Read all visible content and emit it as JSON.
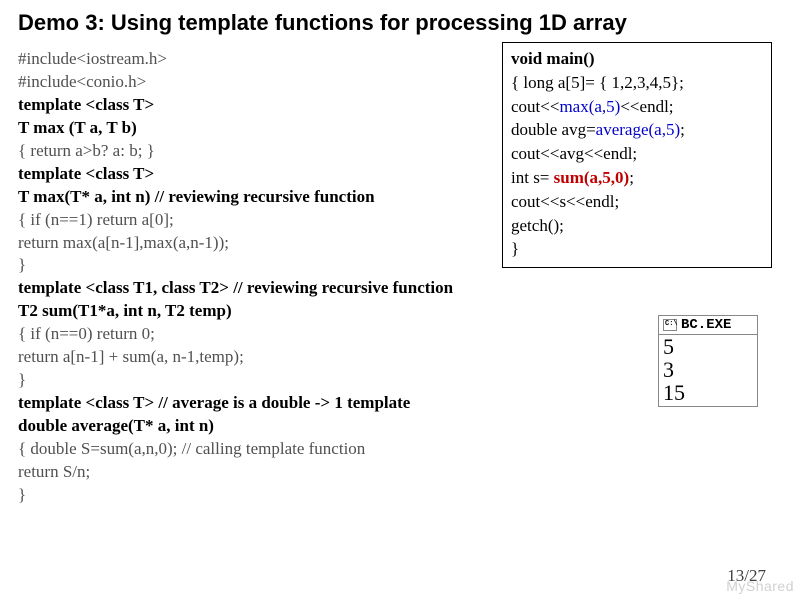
{
  "title": "Demo 3: Using template functions for processing 1D array",
  "left": {
    "l1": "#include<iostream.h>",
    "l2": "#include<conio.h>",
    "l3a": "template ",
    "l3b": "<class T>",
    "l4": "T max (T a, T b)",
    "l5": "{ return a>b? a: b; }",
    "l6a": "template ",
    "l6b": "<class T>",
    "l7": "T max(T* a, int n)",
    "l7c": "  // reviewing recursive function",
    "l8": "{  if (n==1) return a[0];",
    "l9": "   return max(a[n-1],max(a,n-1));",
    "l10": "}",
    "l11a": "template ",
    "l11b": "<class T1, class T2>",
    "l11c": "       // reviewing recursive function",
    "l12": "T2 sum(T1*a, int n, T2 temp)",
    "l13": "{  if (n==0) return 0;",
    "l14": "   return a[n-1] + sum(a, n-1,temp);",
    "l15": "}",
    "l16a": "template ",
    "l16b": "<class T>",
    "l16c": "                  // average is a double -> 1 template",
    "l17": "double average(T* a, int n)",
    "l18": "{ double S=sum(a,n,0); // calling template function",
    "l19": "   return S/n;",
    "l20": "}"
  },
  "right": {
    "l1": "void main()",
    "l2": " { long a[5]= { 1,2,3,4,5};",
    "l3a": "   cout<<",
    "l3b": "max(a,5)",
    "l3c": "<<endl;",
    "l4a": "   double avg=",
    "l4b": "average(a,5)",
    "l4c": ";",
    "l5": "   cout<<avg<<endl;",
    "l6a": "   int s= ",
    "l6b": "sum(a,5,0)",
    "l6c": ";",
    "l7": "   cout<<s<<endl;",
    "l8": "   getch();",
    "l9": " }"
  },
  "output": {
    "title": "BC.EXE",
    "lines": [
      "5",
      "3",
      "15"
    ]
  },
  "page": "13/27",
  "watermark": "MyShared"
}
